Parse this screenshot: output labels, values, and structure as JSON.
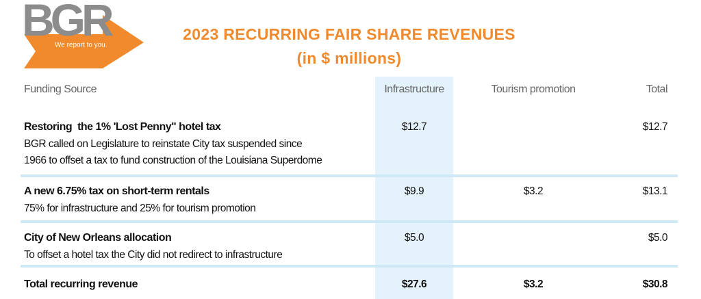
{
  "logo": {
    "text": "BGR",
    "tagline": "We report to you."
  },
  "header": {
    "title": "2023 RECURRING FAIR SHARE REVENUES",
    "subtitle": "(in $ millions)"
  },
  "table": {
    "columns": [
      "Funding Source",
      "Infrastructure",
      "Tourism promotion",
      "Total"
    ],
    "rows": [
      {
        "title": "Restoring  the 1% 'Lost Penny\" hotel tax",
        "description": [
          "BGR called on Legislature to reinstate City tax suspended since",
          "1966 to offset a tax to fund construction of the Louisiana Superdome"
        ],
        "infrastructure": "$12.7",
        "total": "$12.7"
      },
      {
        "title": "A new 6.75% tax on short-term rentals",
        "description": [
          "75% for infrastructure and 25% for tourism promotion"
        ],
        "infrastructure": "$9.9",
        "tourism": "$3.2",
        "total": "$13.1"
      },
      {
        "title": "City of New Orleans allocation",
        "description": [
          "To offset a hotel tax the City did not redirect to infrastructure"
        ],
        "infrastructure": "$5.0",
        "total": "$5.0"
      }
    ],
    "total": {
      "title": "Total recurring revenue",
      "infrastructure": "$27.6",
      "tourism": "$3.2",
      "total": "$30.8"
    }
  }
}
